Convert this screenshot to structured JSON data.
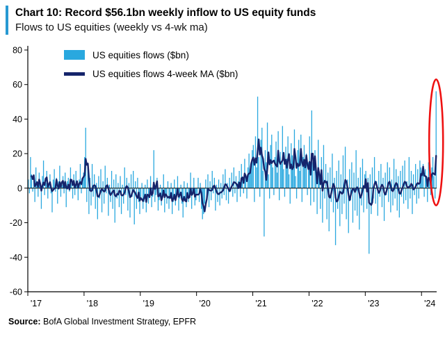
{
  "header": {
    "title": "Chart 10: Record $56.1bn weekly inflow to US equity funds",
    "subtitle": "Flows to US equities (weekly vs 4-wk ma)"
  },
  "legend": {
    "items": [
      {
        "label": "US equities flows ($bn)"
      },
      {
        "label": "US equities flows 4-week MA ($bn)"
      }
    ]
  },
  "source": {
    "label": "Source:",
    "text": " BofA Global Investment Strategy, EPFR"
  },
  "colors": {
    "accent_blue": "#2799D2",
    "bar_blue": "#29A8DF",
    "ma_navy": "#15246B",
    "annotation_red": "#EE1111",
    "axis_black": "#000000"
  },
  "chart_data": {
    "type": "bar",
    "title": "Flows to US equities (weekly vs 4-wk ma)",
    "x_start_year": 2017,
    "frequency": "weekly",
    "ylim": [
      -60,
      80
    ],
    "yticks": [
      80,
      60,
      40,
      20,
      0,
      -20,
      -40,
      -60
    ],
    "xticks": [
      "'17",
      "'18",
      "'19",
      "'20",
      "'21",
      "'22",
      "'23",
      "'24"
    ],
    "weeks_per_tick": 52,
    "grid": false,
    "legend_position": "top-left inside plot",
    "highlight_value": 56.1,
    "annotations": [
      {
        "type": "ellipse",
        "target": "final bar, record $56.1bn weekly inflow",
        "color": "#EE1111"
      }
    ],
    "series": [
      {
        "name": "US equities flows ($bn)",
        "type": "bar",
        "color": "#29A8DF",
        "values": [
          5,
          -3,
          18,
          8,
          -2,
          6,
          -8,
          12,
          4,
          -5,
          9,
          2,
          -12,
          7,
          16,
          -4,
          3,
          10,
          -6,
          2,
          8,
          -3,
          -14,
          5,
          11,
          -2,
          6,
          -9,
          4,
          13,
          -5,
          2,
          7,
          -3,
          9,
          -11,
          4,
          6,
          -2,
          12,
          3,
          -6,
          8,
          -4,
          10,
          2,
          -7,
          5,
          14,
          -3,
          6,
          9,
          18,
          35,
          -8,
          12,
          -15,
          6,
          -10,
          14,
          -5,
          8,
          -12,
          3,
          -18,
          7,
          -6,
          11,
          -14,
          4,
          -9,
          13,
          -3,
          6,
          -16,
          2,
          -8,
          10,
          -12,
          5,
          -20,
          8,
          -6,
          3,
          -11,
          7,
          -15,
          2,
          -9,
          12,
          -4,
          6,
          -13,
          3,
          -17,
          8,
          -5,
          10,
          -21,
          4,
          -12,
          6,
          -8,
          -15,
          -6,
          3,
          -12,
          -8,
          2,
          -14,
          5,
          -9,
          -3,
          7,
          -11,
          -5,
          22,
          -8,
          -4,
          6,
          -13,
          -7,
          2,
          -10,
          -5,
          8,
          -14,
          -3,
          -9,
          4,
          -12,
          -6,
          3,
          -15,
          -8,
          5,
          -10,
          -4,
          7,
          -13,
          -6,
          2,
          -9,
          -17,
          4,
          -7,
          -11,
          3,
          -8,
          -5,
          9,
          -12,
          -4,
          6,
          -10,
          -7,
          -4,
          6,
          -8,
          3,
          -12,
          -18,
          -15,
          -9,
          5,
          -6,
          8,
          -11,
          4,
          -7,
          10,
          -3,
          6,
          -13,
          2,
          -8,
          5,
          -10,
          3,
          -6,
          8,
          -4,
          11,
          -7,
          3,
          -9,
          6,
          -2,
          9,
          -5,
          12,
          -3,
          7,
          -8,
          4,
          10,
          -5,
          14,
          6,
          -3,
          17,
          8,
          -6,
          12,
          20,
          9,
          15,
          22,
          25,
          -8,
          30,
          12,
          53,
          18,
          -5,
          28,
          35,
          10,
          -28,
          22,
          15,
          38,
          8,
          -6,
          25,
          31,
          12,
          -4,
          18,
          27,
          9,
          33,
          -7,
          21,
          14,
          36,
          11,
          -5,
          24,
          17,
          30,
          8,
          -9,
          26,
          19,
          12,
          34,
          7,
          -6,
          22,
          28,
          10,
          31,
          -8,
          18,
          25,
          13,
          20,
          -4,
          15,
          30,
          -10,
          45,
          15,
          -8,
          22,
          12,
          -15,
          28,
          8,
          -12,
          18,
          -20,
          25,
          -6,
          14,
          -18,
          9,
          -25,
          12,
          -8,
          20,
          -14,
          6,
          -33,
          10,
          -12,
          16,
          -22,
          8,
          -15,
          19,
          -9,
          24,
          -18,
          5,
          -26,
          11,
          -7,
          15,
          -20,
          9,
          -13,
          22,
          -16,
          6,
          -24,
          12,
          -10,
          17,
          -14,
          8,
          10,
          -12,
          6,
          -38,
          8,
          -15,
          12,
          -6,
          18,
          -9,
          4,
          -16,
          10,
          -5,
          14,
          -11,
          6,
          -19,
          9,
          -4,
          15,
          -8,
          12,
          -14,
          5,
          -10,
          17,
          -6,
          11,
          -13,
          7,
          -17,
          10,
          -5,
          13,
          -9,
          16,
          -7,
          4,
          -12,
          18,
          -6,
          10,
          -15,
          8,
          -4,
          14,
          -9,
          11,
          -6,
          16,
          12,
          8,
          14,
          -5,
          11,
          6,
          -8,
          15,
          9,
          -4,
          12,
          18,
          7,
          -6,
          56.1
        ]
      },
      {
        "name": "US equities flows 4-week MA ($bn)",
        "type": "line",
        "color": "#15246B",
        "derived": "4-week moving average of the weekly flows series"
      }
    ]
  }
}
